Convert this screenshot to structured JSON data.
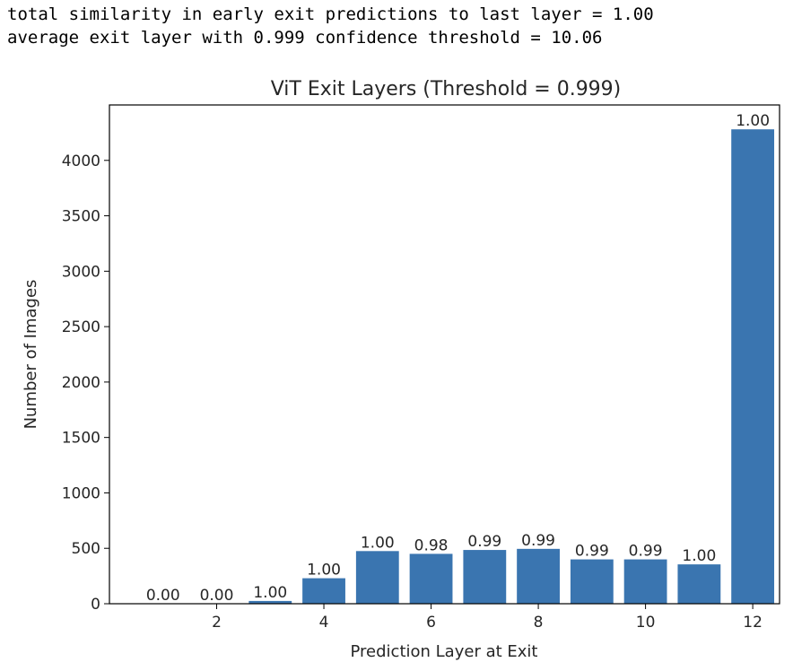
{
  "console": {
    "line1": "total similarity in early exit predictions to last layer = 1.00",
    "line2": "average exit layer with 0.999 confidence threshold = 10.06"
  },
  "chart_data": {
    "type": "bar",
    "title": "ViT Exit Layers (Threshold = 0.999)",
    "xlabel": "Prediction Layer at Exit",
    "ylabel": "Number of Images",
    "categories": [
      1,
      2,
      3,
      4,
      5,
      6,
      7,
      8,
      9,
      10,
      11,
      12
    ],
    "values": [
      0,
      0,
      25,
      230,
      475,
      450,
      485,
      495,
      400,
      400,
      355,
      4280
    ],
    "bar_labels": [
      "0.00",
      "0.00",
      "1.00",
      "1.00",
      "1.00",
      "0.98",
      "0.99",
      "0.99",
      "0.99",
      "0.99",
      "1.00",
      "1.00"
    ],
    "xticks": [
      2,
      4,
      6,
      8,
      10,
      12
    ],
    "yticks": [
      0,
      500,
      1000,
      1500,
      2000,
      2500,
      3000,
      3500,
      4000
    ],
    "xlim": [
      0.0,
      12.5
    ],
    "ylim": [
      0,
      4500
    ],
    "bar_color": "#3a75b0",
    "grid": false,
    "legend": "none"
  }
}
